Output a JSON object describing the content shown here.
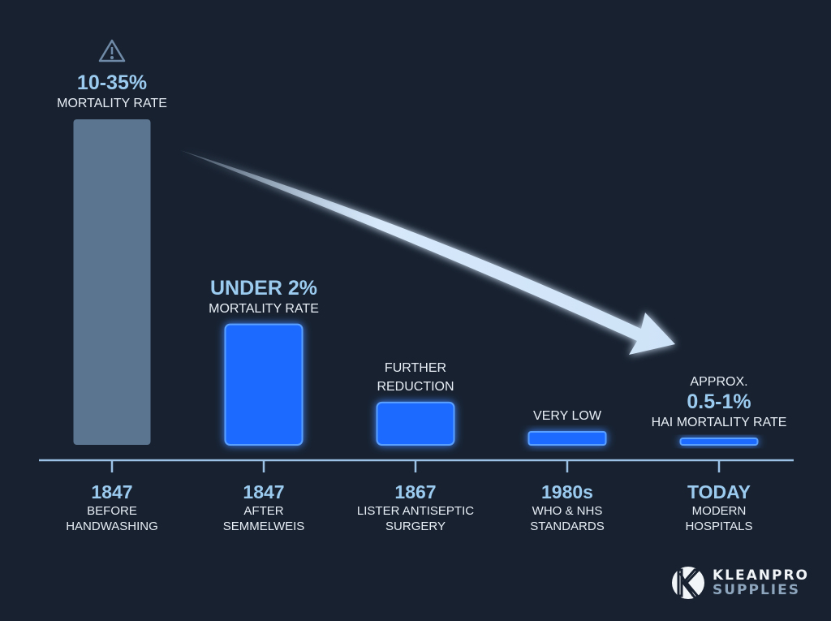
{
  "chart_data": {
    "type": "bar",
    "categories": [
      {
        "year": "1847",
        "desc": [
          "BEFORE",
          "HANDWASHING"
        ]
      },
      {
        "year": "1847",
        "desc": [
          "AFTER",
          "SEMMELWEIS"
        ]
      },
      {
        "year": "1867",
        "desc": [
          "LISTER ANTISEPTIC",
          "SURGERY"
        ]
      },
      {
        "year": "1980s",
        "desc": [
          "WHO & NHS",
          "STANDARDS"
        ]
      },
      {
        "year": "TODAY",
        "desc": [
          "MODERN",
          "HOSPITALS"
        ]
      }
    ],
    "relative_values": [
      1.0,
      0.37,
      0.13,
      0.04,
      0.02
    ],
    "bar_labels": [
      {
        "pre": "",
        "value": "10-35%",
        "post": "MORTALITY RATE"
      },
      {
        "pre": "",
        "value": "UNDER 2%",
        "post": "MORTALITY RATE"
      },
      {
        "pre": "FURTHER",
        "value": "",
        "post": "REDUCTION"
      },
      {
        "pre": "",
        "value": "",
        "post": "VERY LOW"
      },
      {
        "pre": "APPROX.",
        "value": "0.5-1%",
        "post": "HAI MORTALITY RATE"
      }
    ],
    "colors": {
      "background": "#172130",
      "first_bar": "#5b7590",
      "bars": "#1f6bff",
      "accent_text": "#9ccbf0",
      "axis": "#9cc3e6"
    },
    "trend_arrow": "downward",
    "warning_icon": "warning-triangle-icon",
    "grid": false
  },
  "logo": {
    "line1": "KLEANPRO",
    "line2": "SUPPLIES"
  }
}
